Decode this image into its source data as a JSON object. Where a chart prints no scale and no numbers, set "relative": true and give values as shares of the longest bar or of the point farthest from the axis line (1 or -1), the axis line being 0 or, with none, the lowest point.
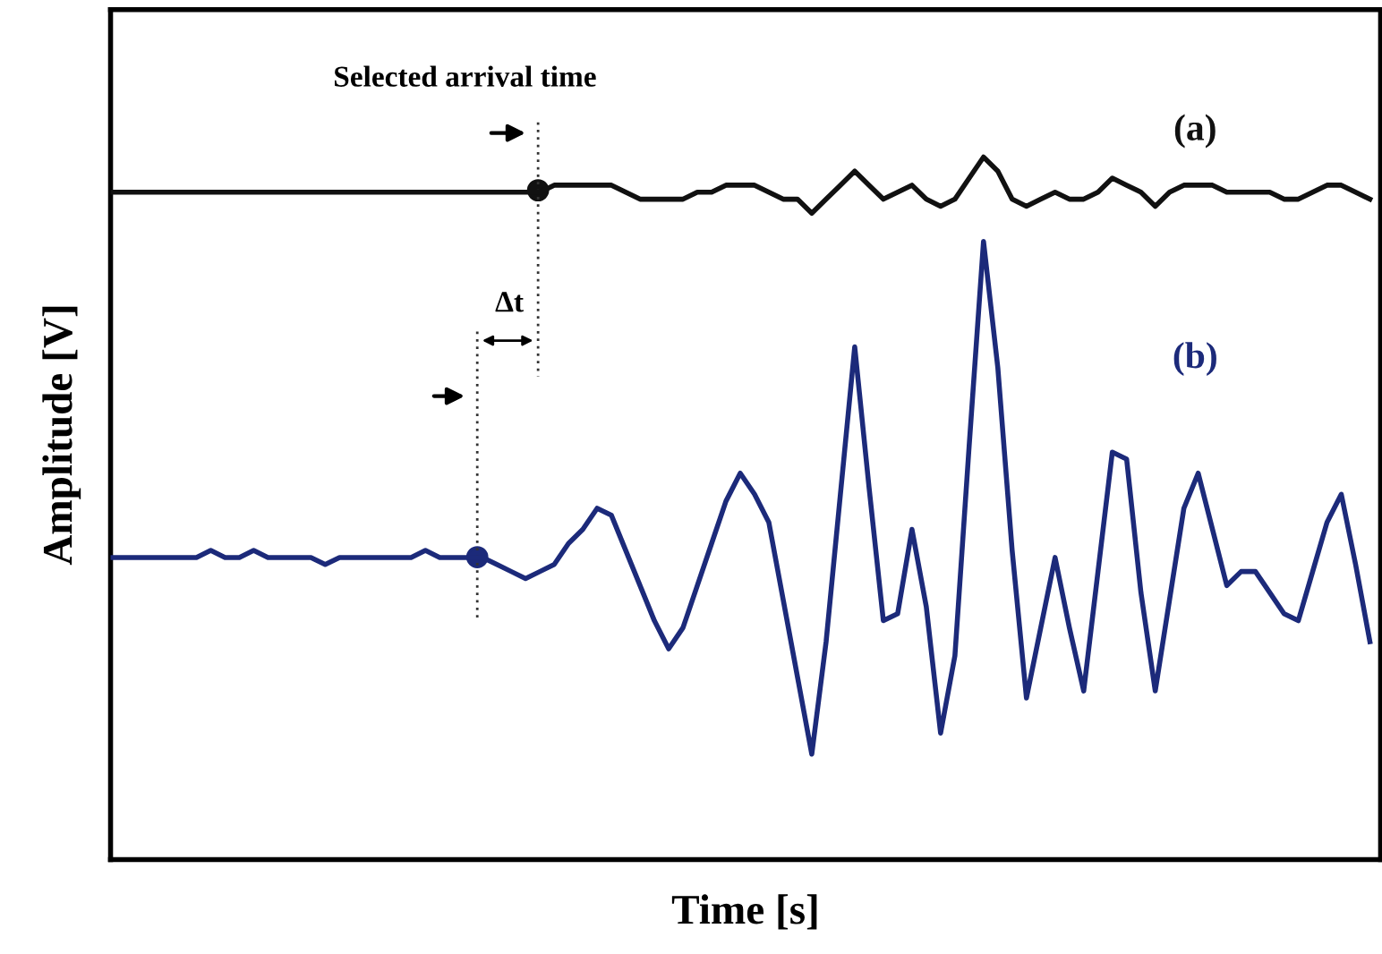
{
  "chart_data": {
    "type": "line",
    "relative": true,
    "xlabel": "Time [s]",
    "ylabel": "Amplitude [V]",
    "annotations": [
      "Selected arrival time",
      "Δt"
    ],
    "categories": [
      null,
      null,
      null,
      null,
      null,
      null,
      null,
      null,
      null,
      null,
      null,
      null,
      null,
      null,
      null,
      null,
      null,
      null,
      null,
      null,
      null,
      null,
      null,
      null,
      null,
      null,
      null,
      null,
      null,
      null,
      null,
      null,
      null,
      null,
      null,
      null,
      null,
      null,
      null,
      null,
      null,
      null,
      null,
      null,
      null,
      null,
      null,
      null,
      null,
      null,
      null,
      null,
      null,
      null,
      null,
      null,
      null,
      null,
      null,
      null,
      null,
      null,
      null,
      null,
      null,
      null,
      null,
      null,
      null,
      null,
      null,
      null,
      null,
      null,
      null,
      null,
      null,
      null,
      null,
      null,
      null,
      null,
      null,
      null,
      null,
      null,
      null,
      null,
      null
    ],
    "series": [
      {
        "name": "(a)",
        "color": "#111111",
        "values": [
          0.95,
          0.95,
          0.95,
          0.95,
          0.95,
          0.95,
          0.95,
          0.95,
          0.95,
          0.95,
          0.95,
          0.95,
          0.95,
          0.95,
          0.95,
          0.95,
          0.95,
          0.95,
          0.95,
          0.95,
          0.95,
          0.95,
          0.95,
          0.95,
          0.95,
          0.95,
          0.95,
          0.95,
          0.95,
          0.95,
          0.95,
          0.96,
          0.96,
          0.96,
          0.96,
          0.96,
          0.95,
          0.94,
          0.94,
          0.94,
          0.94,
          0.95,
          0.95,
          0.96,
          0.96,
          0.96,
          0.95,
          0.94,
          0.94,
          0.92,
          0.94,
          0.96,
          0.98,
          0.96,
          0.94,
          0.95,
          0.96,
          0.94,
          0.93,
          0.94,
          0.97,
          1.0,
          0.98,
          0.94,
          0.93,
          0.94,
          0.95,
          0.94,
          0.94,
          0.95,
          0.97,
          0.96,
          0.95,
          0.93,
          0.95,
          0.96,
          0.96,
          0.96,
          0.95,
          0.95,
          0.95,
          0.95,
          0.94,
          0.94,
          0.95,
          0.96,
          0.96,
          0.95,
          0.94
        ]
      },
      {
        "name": "(b)",
        "color": "#1c2a7a",
        "values": [
          0.43,
          0.43,
          0.43,
          0.43,
          0.43,
          0.43,
          0.43,
          0.44,
          0.43,
          0.43,
          0.44,
          0.43,
          0.43,
          0.43,
          0.43,
          0.42,
          0.43,
          0.43,
          0.43,
          0.43,
          0.43,
          0.43,
          0.44,
          0.43,
          0.43,
          0.43,
          0.43,
          0.42,
          0.41,
          0.4,
          0.41,
          0.42,
          0.45,
          0.47,
          0.5,
          0.49,
          0.44,
          0.39,
          0.34,
          0.3,
          0.33,
          0.39,
          0.45,
          0.51,
          0.55,
          0.52,
          0.48,
          0.37,
          0.26,
          0.15,
          0.31,
          0.52,
          0.73,
          0.53,
          0.34,
          0.35,
          0.47,
          0.36,
          0.18,
          0.29,
          0.59,
          0.88,
          0.7,
          0.44,
          0.23,
          0.33,
          0.43,
          0.33,
          0.24,
          0.41,
          0.58,
          0.57,
          0.38,
          0.24,
          0.37,
          0.5,
          0.55,
          0.47,
          0.39,
          0.41,
          0.41,
          0.38,
          0.35,
          0.34,
          0.41,
          0.48,
          0.52,
          0.42,
          0.31
        ]
      }
    ]
  }
}
